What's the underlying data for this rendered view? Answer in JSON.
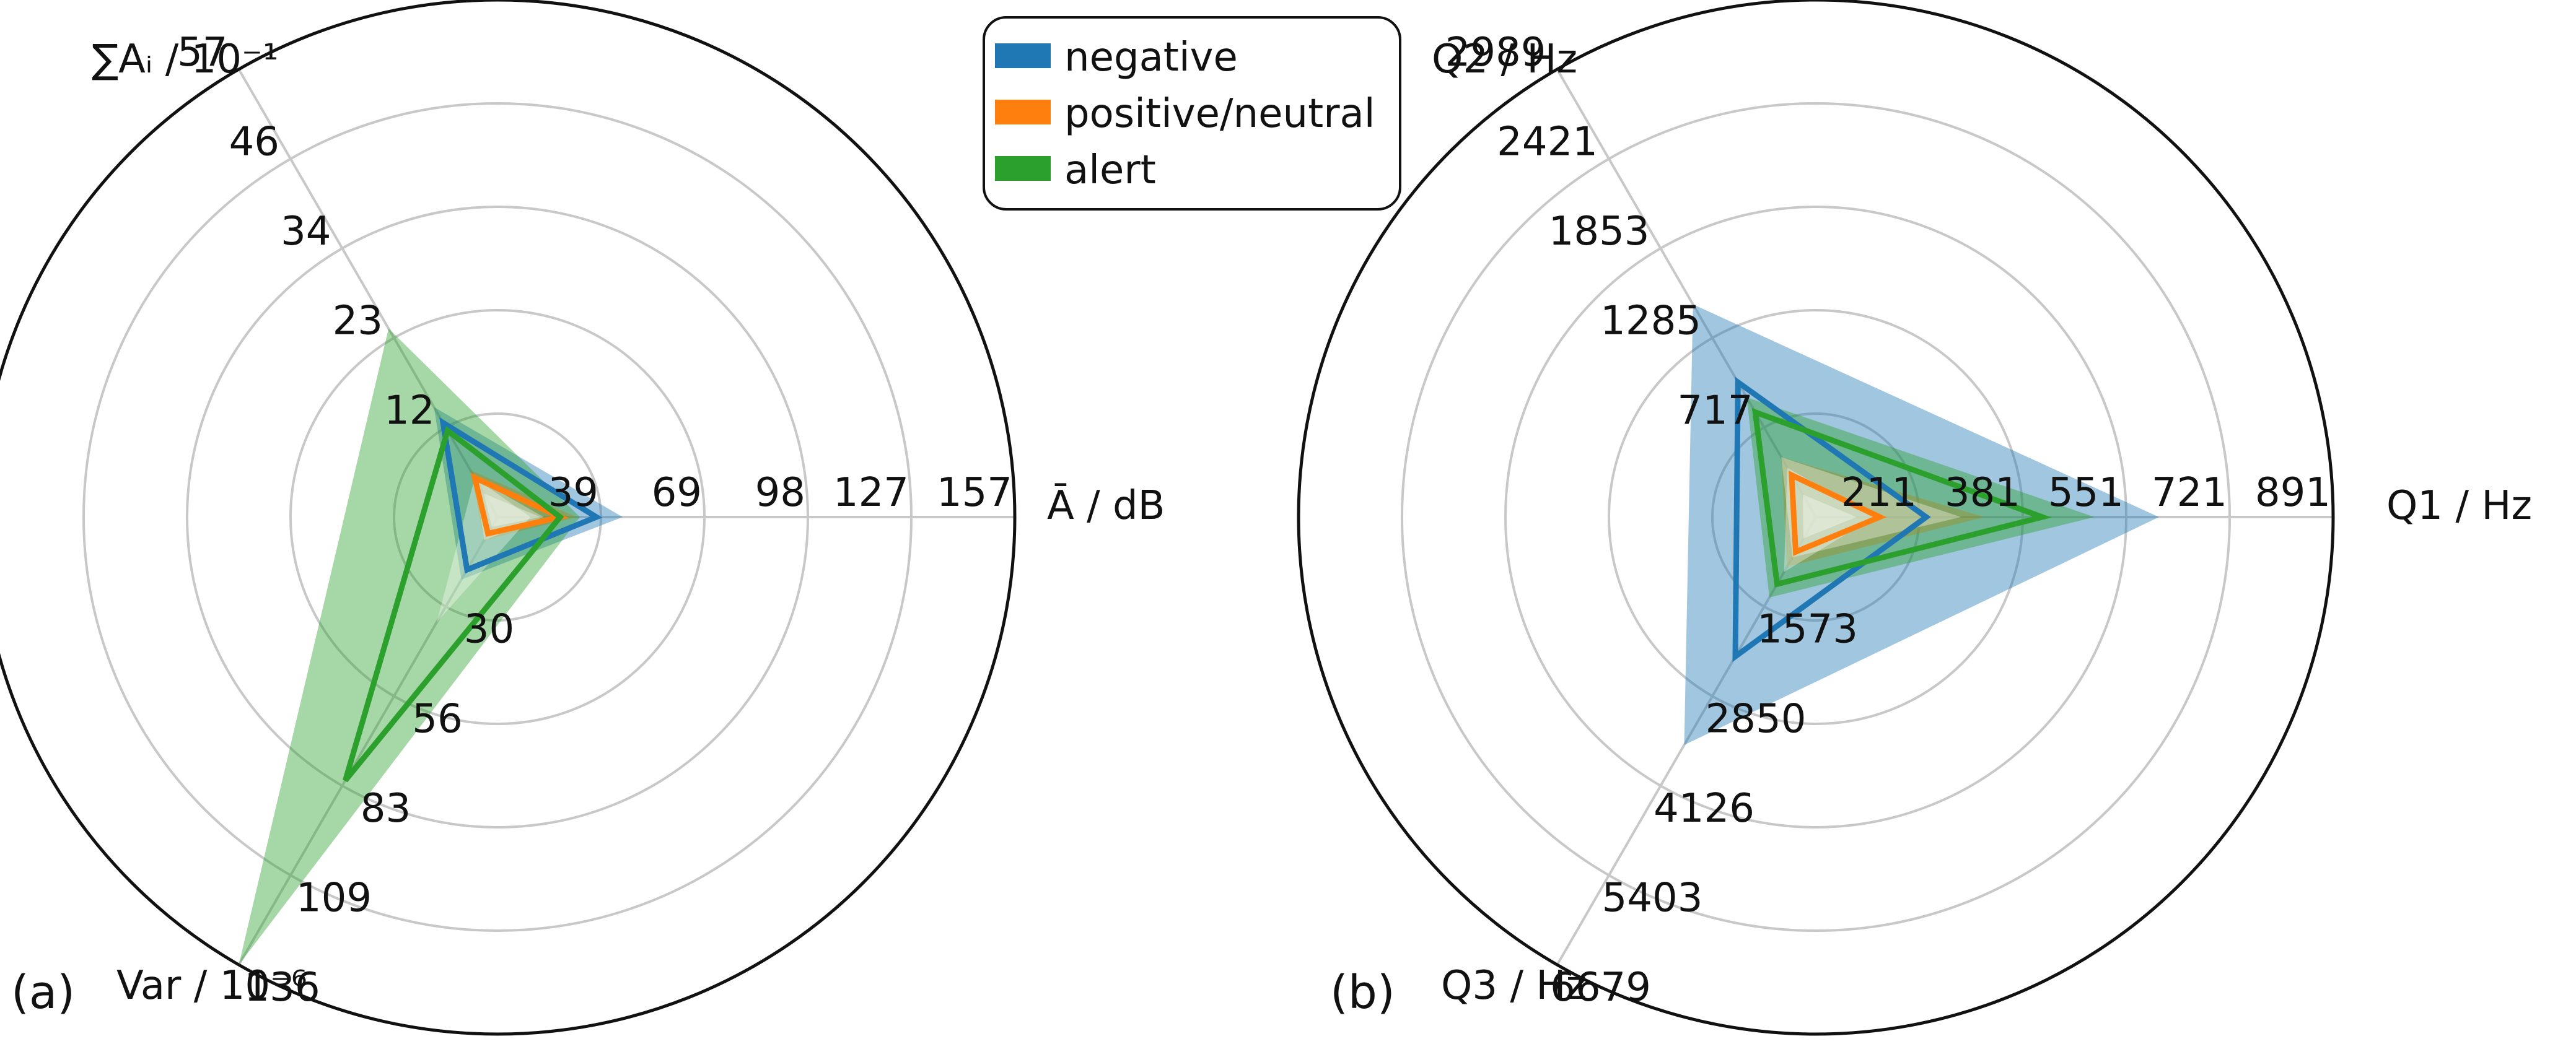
{
  "legend": {
    "entries": [
      {
        "label": "negative",
        "color": "#1f77b4"
      },
      {
        "label": "positive/neutral",
        "color": "#ff7f0e"
      },
      {
        "label": "alert",
        "color": "#2ca02c"
      }
    ],
    "placement": "top-center"
  },
  "chart_data": [
    {
      "type": "radar",
      "panel_label": "(a)",
      "grid": true,
      "axes": [
        {
          "label": "Ā / dB",
          "ticks": [
            "39",
            "69",
            "98",
            "127",
            "157"
          ],
          "max": 157
        },
        {
          "label": "∑Aᵢ / 10⁻¹",
          "ticks": [
            "12",
            "23",
            "34",
            "46",
            "57"
          ],
          "max": 57
        },
        {
          "label": "Var / 10⁻⁶",
          "ticks": [
            "30",
            "56",
            "83",
            "109",
            "136"
          ],
          "max": 136
        }
      ],
      "series": [
        {
          "name": "negative",
          "color": "#1f77b4",
          "mean": [
            30,
            12,
            16
          ],
          "upper": [
            38,
            14,
            19
          ],
          "lower": [
            14,
            5,
            7
          ]
        },
        {
          "name": "positive/neutral",
          "color": "#ff7f0e",
          "mean": [
            19,
            5,
            5
          ],
          "upper": [
            24,
            6,
            7
          ],
          "lower": [
            13,
            3,
            3
          ]
        },
        {
          "name": "alert",
          "color": "#2ca02c",
          "mean": [
            19,
            11,
            80
          ],
          "upper": [
            25,
            24,
            136
          ],
          "lower": [
            10,
            5,
            32
          ]
        }
      ]
    },
    {
      "type": "radar",
      "panel_label": "(b)",
      "grid": true,
      "axes": [
        {
          "label": "Q1 / Hz",
          "ticks": [
            "211",
            "381",
            "551",
            "721",
            "891"
          ],
          "max": 891
        },
        {
          "label": "Q2 / Hz",
          "ticks": [
            "717",
            "1285",
            "1853",
            "2421",
            "2989"
          ],
          "max": 2989
        },
        {
          "label": "Q3 / Hz",
          "ticks": [
            "1573",
            "2850",
            "4126",
            "5403",
            "6679"
          ],
          "max": 6679
        }
      ],
      "series": [
        {
          "name": "negative",
          "color": "#1f77b4",
          "mean": [
            190,
            900,
            2080
          ],
          "upper": [
            591,
            1420,
            3400
          ],
          "lower": [
            100,
            330,
            820
          ]
        },
        {
          "name": "positive/neutral",
          "color": "#ff7f0e",
          "mean": [
            110,
            280,
            520
          ],
          "upper": [
            290,
            400,
            740
          ],
          "lower": [
            70,
            150,
            320
          ]
        },
        {
          "name": "alert",
          "color": "#2ca02c",
          "mean": [
            390,
            700,
            1000
          ],
          "upper": [
            480,
            800,
            1200
          ],
          "lower": [
            250,
            400,
            600
          ]
        }
      ]
    }
  ]
}
